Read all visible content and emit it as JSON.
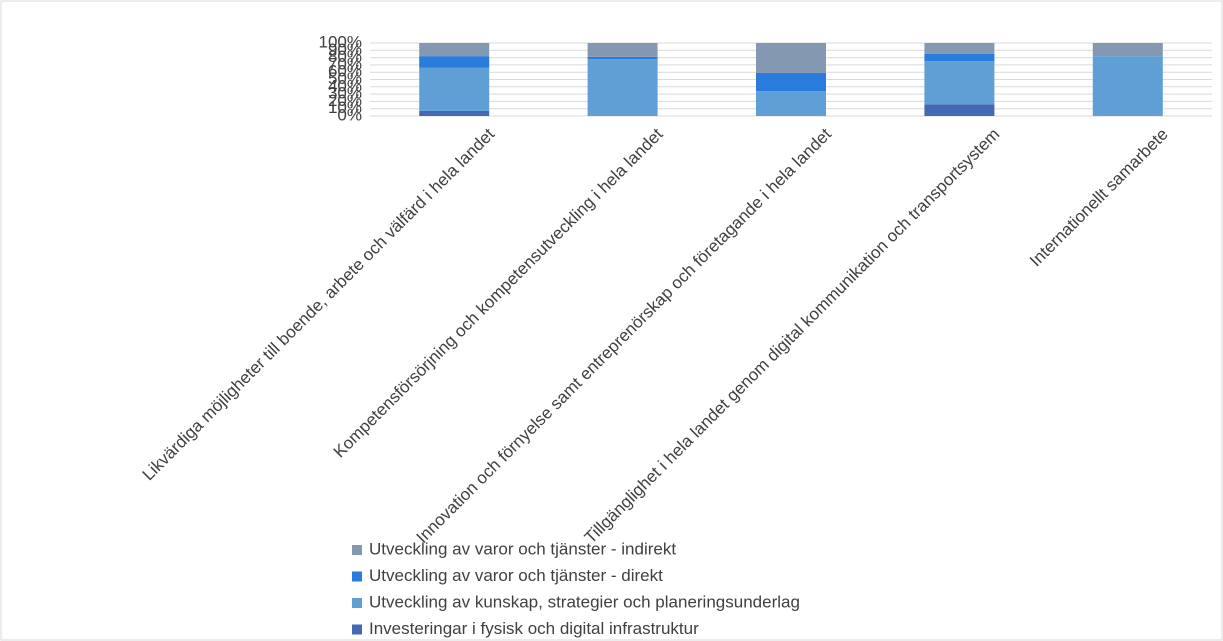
{
  "chart_data": {
    "type": "stacked_bar",
    "categories": [
      "Likvärdiga möjligheter till boende, arbete och välfärd i hela landet",
      "Kompetensförsörjning och kompetensutveckling i hela landet",
      "Innovation och förnyelse samt entreprenörskap och företagande i hela landet",
      "Tillgänglighet i hela landet genom digital kommunikation och transportsystem",
      "Internationellt samarbete"
    ],
    "series": [
      {
        "name": "Investeringar i fysisk och digital infrastruktur",
        "color": "#4468b4",
        "values": [
          7,
          0,
          0,
          16,
          0
        ]
      },
      {
        "name": "Utveckling av kunskap, strategier och planeringsunderlag",
        "color": "#5f9fd6",
        "values": [
          59,
          78,
          34,
          59,
          82
        ]
      },
      {
        "name": "Utveckling av varor och tjänster - direkt",
        "color": "#2a7cdc",
        "values": [
          16,
          3,
          25,
          10,
          0
        ]
      },
      {
        "name": "Utveckling av varor och tjänster - indirekt",
        "color": "#8598b2",
        "values": [
          18,
          19,
          41,
          15,
          18
        ]
      }
    ],
    "ylim": [
      0,
      100
    ],
    "yticks": [
      {
        "value": 0,
        "label": "0%"
      },
      {
        "value": 10,
        "label": "10%"
      },
      {
        "value": 20,
        "label": "20%"
      },
      {
        "value": 30,
        "label": "30%"
      },
      {
        "value": 40,
        "label": "40%"
      },
      {
        "value": 50,
        "label": "50%"
      },
      {
        "value": 60,
        "label": "60%"
      },
      {
        "value": 70,
        "label": "70%"
      },
      {
        "value": 80,
        "label": "80%"
      },
      {
        "value": 90,
        "label": "90%"
      },
      {
        "value": 100,
        "label": "100%"
      }
    ],
    "grid": true,
    "legend": "bottom"
  }
}
